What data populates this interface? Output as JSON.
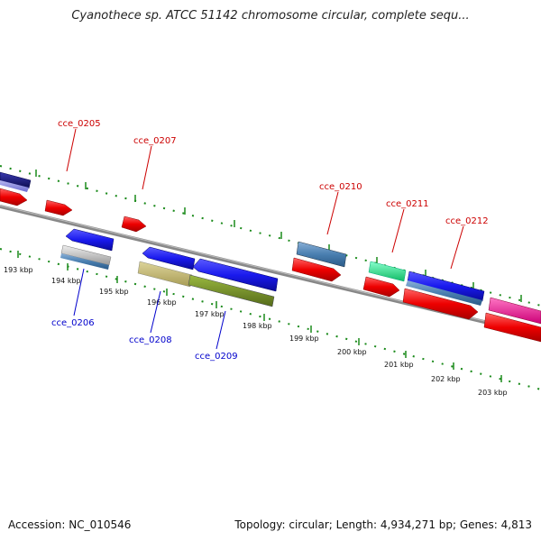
{
  "title": "Cyanothece sp. ATCC 51142 chromosome circular, complete sequ...",
  "footer": {
    "accession": "Accession: NC_010546",
    "summary": "Topology: circular; Length: 4,934,271 bp; Genes: 4,813"
  },
  "colors": {
    "strand_line": "#808080",
    "tick_green": "#1a8a1a",
    "label_forward": "#cc0000",
    "label_reverse": "#0000cc"
  },
  "position_ticks": [
    "193 kbp",
    "194 kbp",
    "195 kbp",
    "196 kbp",
    "197 kbp",
    "198 kbp",
    "199 kbp",
    "200 kbp",
    "201 kbp",
    "202 kbp",
    "203 kbp"
  ],
  "gene_labels": {
    "cce_0205": "cce_0205",
    "cce_0206": "cce_0206",
    "cce_0207": "cce_0207",
    "cce_0208": "cce_0208",
    "cce_0209": "cce_0209",
    "cce_0210": "cce_0210",
    "cce_0211": "cce_0211",
    "cce_0212": "cce_0212"
  },
  "genes": [
    {
      "id": "upper-left-edge",
      "strand": "+",
      "color": "#1a1a80",
      "label": null
    },
    {
      "id": "red-1",
      "strand": "+",
      "color": "#e00000",
      "label": null
    },
    {
      "id": "red-2",
      "strand": "+",
      "color": "#e00000",
      "label": null
    },
    {
      "id": "cce_0206",
      "strand": "-",
      "color": "#1a1aee",
      "label": "cce_0206"
    },
    {
      "id": "cce_0208",
      "strand": "-",
      "color": "#1a1aee",
      "label": "cce_0208"
    },
    {
      "id": "cce_0209",
      "strand": "-",
      "color": "#1a1aee",
      "label": "cce_0209"
    },
    {
      "id": "cce_0210",
      "strand": "+",
      "color": "#4a7fb0",
      "label": "cce_0210"
    },
    {
      "id": "cce_0211",
      "strand": "+",
      "color": "#22dd88",
      "label": "cce_0211"
    },
    {
      "id": "cce_0212",
      "strand": "+",
      "color": "#1a1aee",
      "label": "cce_0212"
    },
    {
      "id": "pink-edge",
      "strand": "+",
      "color": "#ff1a9a",
      "label": null
    }
  ]
}
